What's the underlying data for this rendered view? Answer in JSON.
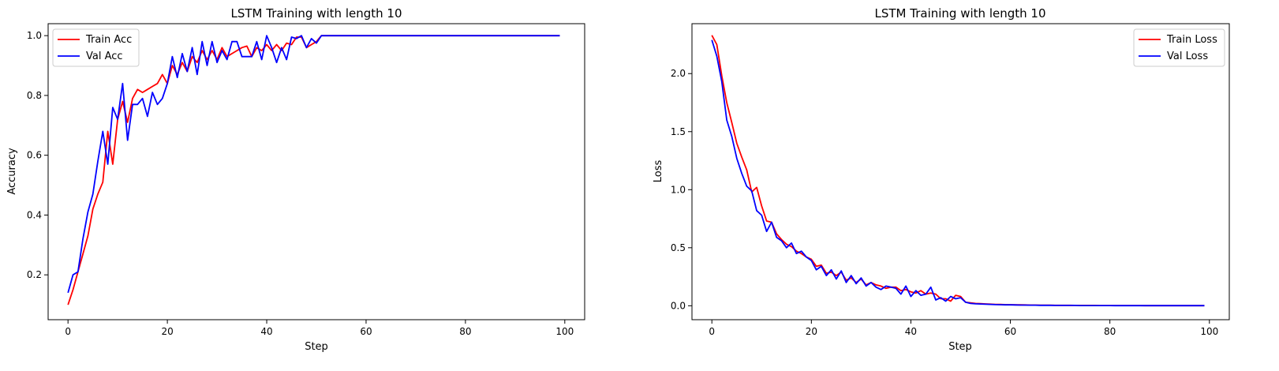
{
  "chart_data": [
    {
      "type": "line",
      "title": "LSTM Training with length 10",
      "xlabel": "Step",
      "ylabel": "Accuracy",
      "xlim": [
        -4,
        104
      ],
      "ylim": [
        0.05,
        1.04
      ],
      "xticks": [
        "0",
        "20",
        "40",
        "60",
        "80",
        "100"
      ],
      "xtick_values": [
        0,
        20,
        40,
        60,
        80,
        100
      ],
      "yticks": [
        "0.2",
        "0.4",
        "0.6",
        "0.8",
        "1.0"
      ],
      "ytick_values": [
        0.2,
        0.4,
        0.6,
        0.8,
        1.0
      ],
      "grid": false,
      "legend_position": "top-left",
      "series": [
        {
          "name": "Train Acc",
          "color": "#ff0000",
          "x": [
            0,
            1,
            2,
            3,
            4,
            5,
            6,
            7,
            8,
            9,
            10,
            11,
            12,
            13,
            14,
            15,
            16,
            17,
            18,
            19,
            20,
            21,
            22,
            23,
            24,
            25,
            26,
            27,
            28,
            29,
            30,
            31,
            32,
            33,
            34,
            35,
            36,
            37,
            38,
            39,
            40,
            41,
            42,
            43,
            44,
            45,
            46,
            47,
            48,
            49,
            50,
            51,
            52,
            53,
            54,
            55,
            56,
            57,
            58,
            59,
            60,
            61,
            62,
            63,
            64,
            65,
            66,
            67,
            68,
            69,
            70,
            71,
            72,
            73,
            74,
            75,
            76,
            77,
            78,
            79,
            80,
            81,
            82,
            83,
            84,
            85,
            86,
            87,
            88,
            89,
            90,
            91,
            92,
            93,
            94,
            95,
            96,
            97,
            98,
            99
          ],
          "y": [
            0.1,
            0.15,
            0.21,
            0.27,
            0.33,
            0.42,
            0.47,
            0.51,
            0.68,
            0.57,
            0.72,
            0.78,
            0.71,
            0.79,
            0.82,
            0.81,
            0.82,
            0.83,
            0.84,
            0.87,
            0.84,
            0.9,
            0.87,
            0.91,
            0.88,
            0.93,
            0.91,
            0.95,
            0.92,
            0.95,
            0.92,
            0.96,
            0.93,
            0.94,
            0.95,
            0.96,
            0.965,
            0.93,
            0.96,
            0.95,
            0.97,
            0.95,
            0.97,
            0.95,
            0.975,
            0.97,
            0.995,
            0.995,
            0.96,
            0.97,
            0.98,
            1.0,
            1.0,
            1.0,
            1.0,
            1.0,
            1.0,
            1.0,
            1.0,
            1.0,
            1.0,
            1.0,
            1.0,
            1.0,
            1.0,
            1.0,
            1.0,
            1.0,
            1.0,
            1.0,
            1.0,
            1.0,
            1.0,
            1.0,
            1.0,
            1.0,
            1.0,
            1.0,
            1.0,
            1.0,
            1.0,
            1.0,
            1.0,
            1.0,
            1.0,
            1.0,
            1.0,
            1.0,
            1.0,
            1.0,
            1.0,
            1.0,
            1.0,
            1.0,
            1.0,
            1.0,
            1.0,
            1.0,
            1.0,
            1.0
          ]
        },
        {
          "name": "Val Acc",
          "color": "#0000ff",
          "x": [
            0,
            1,
            2,
            3,
            4,
            5,
            6,
            7,
            8,
            9,
            10,
            11,
            12,
            13,
            14,
            15,
            16,
            17,
            18,
            19,
            20,
            21,
            22,
            23,
            24,
            25,
            26,
            27,
            28,
            29,
            30,
            31,
            32,
            33,
            34,
            35,
            36,
            37,
            38,
            39,
            40,
            41,
            42,
            43,
            44,
            45,
            46,
            47,
            48,
            49,
            50,
            51,
            52,
            53,
            54,
            55,
            56,
            57,
            58,
            59,
            60,
            61,
            62,
            63,
            64,
            65,
            66,
            67,
            68,
            69,
            70,
            71,
            72,
            73,
            74,
            75,
            76,
            77,
            78,
            79,
            80,
            81,
            82,
            83,
            84,
            85,
            86,
            87,
            88,
            89,
            90,
            91,
            92,
            93,
            94,
            95,
            96,
            97,
            98,
            99
          ],
          "y": [
            0.14,
            0.2,
            0.21,
            0.32,
            0.41,
            0.47,
            0.58,
            0.68,
            0.57,
            0.76,
            0.72,
            0.84,
            0.65,
            0.77,
            0.77,
            0.79,
            0.73,
            0.81,
            0.77,
            0.79,
            0.84,
            0.93,
            0.86,
            0.94,
            0.88,
            0.96,
            0.87,
            0.98,
            0.9,
            0.98,
            0.91,
            0.95,
            0.92,
            0.98,
            0.98,
            0.93,
            0.93,
            0.93,
            0.98,
            0.92,
            1.0,
            0.96,
            0.91,
            0.96,
            0.92,
            0.995,
            0.99,
            1.0,
            0.96,
            0.99,
            0.975,
            1.0,
            1.0,
            1.0,
            1.0,
            1.0,
            1.0,
            1.0,
            1.0,
            1.0,
            1.0,
            1.0,
            1.0,
            1.0,
            1.0,
            1.0,
            1.0,
            1.0,
            1.0,
            1.0,
            1.0,
            1.0,
            1.0,
            1.0,
            1.0,
            1.0,
            1.0,
            1.0,
            1.0,
            1.0,
            1.0,
            1.0,
            1.0,
            1.0,
            1.0,
            1.0,
            1.0,
            1.0,
            1.0,
            1.0,
            1.0,
            1.0,
            1.0,
            1.0,
            1.0,
            1.0,
            1.0,
            1.0,
            1.0,
            1.0
          ]
        }
      ]
    },
    {
      "type": "line",
      "title": "LSTM Training with length 10",
      "xlabel": "Step",
      "ylabel": "Loss",
      "xlim": [
        -4,
        104
      ],
      "ylim": [
        -0.12,
        2.43
      ],
      "xticks": [
        "0",
        "20",
        "40",
        "60",
        "80",
        "100"
      ],
      "xtick_values": [
        0,
        20,
        40,
        60,
        80,
        100
      ],
      "yticks": [
        "0.0",
        "0.5",
        "1.0",
        "1.5",
        "2.0"
      ],
      "ytick_values": [
        0.0,
        0.5,
        1.0,
        1.5,
        2.0
      ],
      "grid": false,
      "legend_position": "top-right",
      "series": [
        {
          "name": "Train Loss",
          "color": "#ff0000",
          "x": [
            0,
            1,
            2,
            3,
            4,
            5,
            6,
            7,
            8,
            9,
            10,
            11,
            12,
            13,
            14,
            15,
            16,
            17,
            18,
            19,
            20,
            21,
            22,
            23,
            24,
            25,
            26,
            27,
            28,
            29,
            30,
            31,
            32,
            33,
            34,
            35,
            36,
            37,
            38,
            39,
            40,
            41,
            42,
            43,
            44,
            45,
            46,
            47,
            48,
            49,
            50,
            51,
            52,
            53,
            54,
            55,
            56,
            57,
            58,
            59,
            60,
            61,
            62,
            63,
            64,
            65,
            66,
            67,
            68,
            69,
            70,
            71,
            72,
            73,
            74,
            75,
            76,
            77,
            78,
            79,
            80,
            81,
            82,
            83,
            84,
            85,
            86,
            87,
            88,
            89,
            90,
            91,
            92,
            93,
            94,
            95,
            96,
            97,
            98,
            99
          ],
          "y": [
            2.33,
            2.25,
            1.98,
            1.75,
            1.58,
            1.4,
            1.28,
            1.17,
            0.98,
            1.02,
            0.86,
            0.73,
            0.72,
            0.62,
            0.57,
            0.53,
            0.51,
            0.47,
            0.45,
            0.42,
            0.4,
            0.34,
            0.35,
            0.28,
            0.29,
            0.26,
            0.29,
            0.22,
            0.24,
            0.2,
            0.23,
            0.18,
            0.2,
            0.18,
            0.17,
            0.15,
            0.16,
            0.16,
            0.13,
            0.14,
            0.12,
            0.11,
            0.13,
            0.1,
            0.11,
            0.1,
            0.06,
            0.06,
            0.04,
            0.09,
            0.08,
            0.03,
            0.025,
            0.02,
            0.018,
            0.016,
            0.014,
            0.012,
            0.011,
            0.01,
            0.009,
            0.008,
            0.008,
            0.007,
            0.006,
            0.006,
            0.005,
            0.005,
            0.005,
            0.004,
            0.004,
            0.004,
            0.004,
            0.003,
            0.003,
            0.003,
            0.003,
            0.003,
            0.002,
            0.002,
            0.002,
            0.002,
            0.002,
            0.002,
            0.002,
            0.002,
            0.002,
            0.001,
            0.001,
            0.001,
            0.001,
            0.001,
            0.001,
            0.001,
            0.001,
            0.001,
            0.001,
            0.001,
            0.001,
            0.001
          ]
        },
        {
          "name": "Val Loss",
          "color": "#0000ff",
          "x": [
            0,
            1,
            2,
            3,
            4,
            5,
            6,
            7,
            8,
            9,
            10,
            11,
            12,
            13,
            14,
            15,
            16,
            17,
            18,
            19,
            20,
            21,
            22,
            23,
            24,
            25,
            26,
            27,
            28,
            29,
            30,
            31,
            32,
            33,
            34,
            35,
            36,
            37,
            38,
            39,
            40,
            41,
            42,
            43,
            44,
            45,
            46,
            47,
            48,
            49,
            50,
            51,
            52,
            53,
            54,
            55,
            56,
            57,
            58,
            59,
            60,
            61,
            62,
            63,
            64,
            65,
            66,
            67,
            68,
            69,
            70,
            71,
            72,
            73,
            74,
            75,
            76,
            77,
            78,
            79,
            80,
            81,
            82,
            83,
            84,
            85,
            86,
            87,
            88,
            89,
            90,
            91,
            92,
            93,
            94,
            95,
            96,
            97,
            98,
            99
          ],
          "y": [
            2.29,
            2.15,
            1.93,
            1.6,
            1.46,
            1.27,
            1.14,
            1.03,
            0.99,
            0.82,
            0.78,
            0.64,
            0.72,
            0.59,
            0.56,
            0.5,
            0.54,
            0.45,
            0.47,
            0.42,
            0.39,
            0.31,
            0.34,
            0.26,
            0.31,
            0.23,
            0.3,
            0.2,
            0.26,
            0.19,
            0.24,
            0.17,
            0.2,
            0.16,
            0.14,
            0.17,
            0.16,
            0.15,
            0.1,
            0.17,
            0.08,
            0.13,
            0.09,
            0.1,
            0.16,
            0.05,
            0.07,
            0.04,
            0.08,
            0.06,
            0.07,
            0.03,
            0.02,
            0.017,
            0.015,
            0.013,
            0.012,
            0.01,
            0.009,
            0.008,
            0.008,
            0.007,
            0.006,
            0.006,
            0.005,
            0.005,
            0.004,
            0.004,
            0.004,
            0.003,
            0.003,
            0.003,
            0.003,
            0.003,
            0.002,
            0.002,
            0.002,
            0.002,
            0.002,
            0.002,
            0.002,
            0.001,
            0.001,
            0.001,
            0.001,
            0.001,
            0.001,
            0.001,
            0.001,
            0.001,
            0.001,
            0.001,
            0.001,
            0.001,
            0.001,
            0.001,
            0.001,
            0.001,
            0.001,
            0.001
          ]
        }
      ]
    }
  ]
}
